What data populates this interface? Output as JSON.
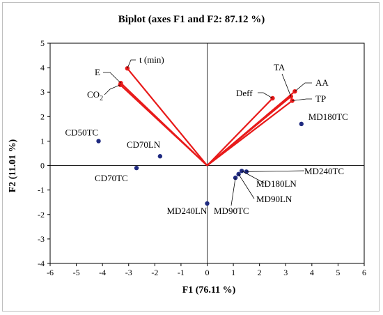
{
  "chart_data": {
    "type": "scatter",
    "title": "Biplot (axes F1 and F2: 87.12 %)",
    "xlabel": "F1 (76.11 %)",
    "ylabel": "F2 (11.01 %)",
    "xlim": [
      -6,
      6
    ],
    "ylim": [
      -4,
      5
    ],
    "x_ticks": [
      "-6",
      "-5",
      "-4",
      "-3",
      "-2",
      "-1",
      "0",
      "1",
      "2",
      "3",
      "4",
      "5",
      "6"
    ],
    "y_ticks": [
      "5",
      "4",
      "3",
      "2",
      "1",
      "0",
      "-1",
      "-2",
      "-3",
      "-4"
    ],
    "grid": false,
    "colors": {
      "observations": "#1f2a80",
      "variables": "#e81a1a",
      "leader": "#000000"
    },
    "observations": [
      {
        "label": "CD50TC",
        "x": -4.15,
        "y": 1.0
      },
      {
        "label": "CD70LN",
        "x": -1.8,
        "y": 0.38
      },
      {
        "label": "CD70TC",
        "x": -2.7,
        "y": -0.1
      },
      {
        "label": "MD180TC",
        "x": 3.6,
        "y": 1.7
      },
      {
        "label": "MD240TC",
        "x": 1.5,
        "y": -0.25
      },
      {
        "label": "MD180LN",
        "x": 1.32,
        "y": -0.22
      },
      {
        "label": "MD90LN",
        "x": 1.2,
        "y": -0.35
      },
      {
        "label": "MD90TC",
        "x": 1.08,
        "y": -0.5
      },
      {
        "label": "MD240LN",
        "x": 0.0,
        "y": -1.55
      }
    ],
    "variables": [
      {
        "label": "t (min)",
        "x": -3.05,
        "y": 3.97
      },
      {
        "label": "E",
        "x": -3.3,
        "y": 3.37
      },
      {
        "label": "CO",
        "sub": "2",
        "x": -3.32,
        "y": 3.3
      },
      {
        "label": "TA",
        "x": 3.2,
        "y": 2.82
      },
      {
        "label": "AA",
        "x": 3.35,
        "y": 3.03
      },
      {
        "label": "Deff",
        "x": 2.5,
        "y": 2.75
      },
      {
        "label": "TP",
        "x": 3.25,
        "y": 2.65
      }
    ]
  }
}
